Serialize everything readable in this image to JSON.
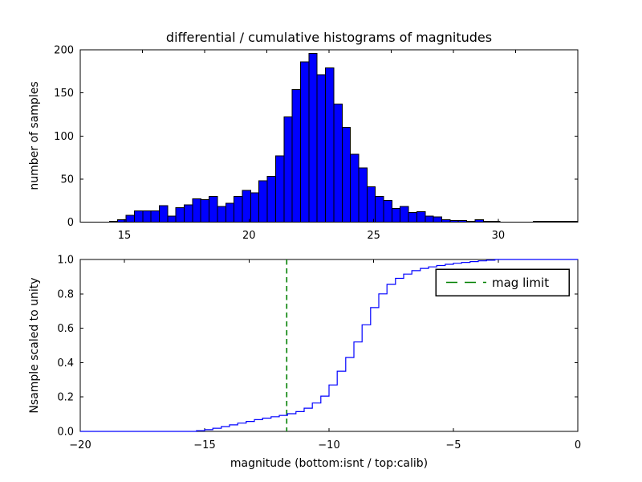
{
  "figure": {
    "background": "#ffffff"
  },
  "colors": {
    "bar_fill": "#0000ff",
    "bar_edge": "#000000",
    "cumulative_line": "#0000ff",
    "mag_limit": "#008000",
    "axes": "#000000"
  },
  "chart_data": [
    {
      "type": "bar",
      "title": "differential / cumulative histograms of magnitudes",
      "ylabel": "number of samples",
      "xlabel": "",
      "xlim": [
        13.23,
        33.19
      ],
      "ylim": [
        0,
        200
      ],
      "grid": false,
      "xticks": [
        15,
        20,
        25,
        30
      ],
      "xtick_labels": [
        "15",
        "20",
        "25",
        "30"
      ],
      "yticks": [
        0,
        50,
        100,
        150,
        200
      ],
      "ytick_labels": [
        "0",
        "50",
        "100",
        "150",
        "200"
      ],
      "top_spine_ticks": {
        "axis": "isnt",
        "values": [
          -17.5,
          -15,
          -12.5,
          -10,
          -7.5,
          -5,
          -2.5
        ]
      },
      "bin_start": 14.4,
      "bin_width": 0.3333,
      "counts": [
        1,
        3,
        8,
        13,
        13,
        13,
        19,
        7,
        17,
        20,
        27,
        26,
        30,
        18,
        22,
        30,
        37,
        34,
        48,
        53,
        77,
        122,
        154,
        186,
        196,
        171,
        179,
        137,
        110,
        79,
        63,
        41,
        30,
        25,
        16,
        18,
        11,
        12,
        7,
        6,
        3,
        2,
        2,
        1,
        3,
        1,
        1,
        0,
        0,
        0,
        0,
        1,
        1,
        1,
        1,
        1,
        1
      ]
    },
    {
      "type": "line",
      "title": "",
      "ylabel": "Nsample scaled to unity",
      "xlabel": "magnitude (bottom:isnt / top:calib)",
      "xlim": [
        -20,
        0
      ],
      "ylim": [
        0.0,
        1.0
      ],
      "grid": false,
      "xticks": [
        -20,
        -15,
        -10,
        -5,
        0
      ],
      "xtick_labels": [
        "−20",
        "−15",
        "−10",
        "−5",
        "0"
      ],
      "yticks": [
        0.0,
        0.2,
        0.4,
        0.6,
        0.8,
        1.0
      ],
      "ytick_labels": [
        "0.0",
        "0.2",
        "0.4",
        "0.6",
        "0.8",
        "1.0"
      ],
      "top_spine_ticks": {
        "axis": "calib",
        "values": [
          15,
          20,
          25,
          30
        ]
      },
      "mag_limit_x": -11.7,
      "legend": {
        "label": "mag limit",
        "position": "upper right"
      },
      "cumulative_steps": [
        [
          -15.33,
          0.004
        ],
        [
          -15.0,
          0.01
        ],
        [
          -14.67,
          0.018
        ],
        [
          -14.33,
          0.028
        ],
        [
          -14.0,
          0.038
        ],
        [
          -13.67,
          0.048
        ],
        [
          -13.33,
          0.058
        ],
        [
          -13.0,
          0.068
        ],
        [
          -12.67,
          0.077
        ],
        [
          -12.33,
          0.085
        ],
        [
          -12.0,
          0.093
        ],
        [
          -11.67,
          0.103
        ],
        [
          -11.33,
          0.115
        ],
        [
          -11.0,
          0.135
        ],
        [
          -10.67,
          0.165
        ],
        [
          -10.33,
          0.205
        ],
        [
          -10.0,
          0.27
        ],
        [
          -9.67,
          0.35
        ],
        [
          -9.33,
          0.43
        ],
        [
          -9.0,
          0.52
        ],
        [
          -8.67,
          0.62
        ],
        [
          -8.33,
          0.72
        ],
        [
          -8.0,
          0.8
        ],
        [
          -7.67,
          0.855
        ],
        [
          -7.33,
          0.89
        ],
        [
          -7.0,
          0.915
        ],
        [
          -6.67,
          0.935
        ],
        [
          -6.33,
          0.948
        ],
        [
          -6.0,
          0.957
        ],
        [
          -5.67,
          0.965
        ],
        [
          -5.33,
          0.972
        ],
        [
          -5.0,
          0.978
        ],
        [
          -4.67,
          0.983
        ],
        [
          -4.33,
          0.988
        ],
        [
          -4.0,
          0.992
        ],
        [
          -3.67,
          0.996
        ],
        [
          -3.33,
          1.0
        ]
      ]
    }
  ]
}
